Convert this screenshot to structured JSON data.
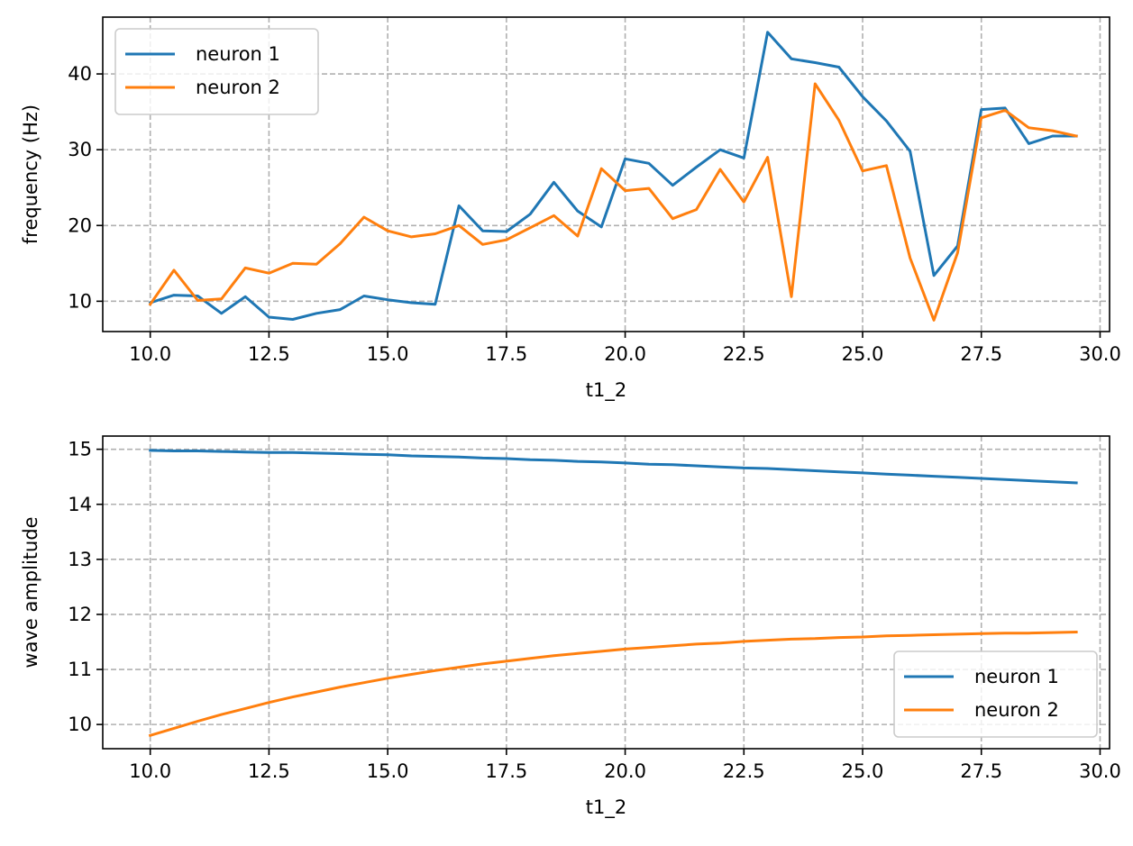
{
  "chart_data": [
    {
      "type": "line",
      "xlabel": "t1_2",
      "ylabel": "frequency (Hz)",
      "xlim": [
        9.0,
        30.2
      ],
      "ylim": [
        6.0,
        47.5
      ],
      "xticks": [
        "10.0",
        "12.5",
        "15.0",
        "17.5",
        "20.0",
        "22.5",
        "25.0",
        "27.5",
        "30.0"
      ],
      "xtick_values": [
        10.0,
        12.5,
        15.0,
        17.5,
        20.0,
        22.5,
        25.0,
        27.5,
        30.0
      ],
      "yticks": [
        "10",
        "20",
        "30",
        "40"
      ],
      "ytick_values": [
        10,
        20,
        30,
        40
      ],
      "grid": true,
      "legend_position": "top-left",
      "x": [
        10.0,
        10.5,
        11.0,
        11.5,
        12.0,
        12.5,
        13.0,
        13.5,
        14.0,
        14.5,
        15.0,
        15.5,
        16.0,
        16.5,
        17.0,
        17.5,
        18.0,
        18.5,
        19.0,
        19.5,
        20.0,
        20.5,
        21.0,
        21.5,
        22.0,
        22.5,
        23.0,
        23.5,
        24.0,
        24.5,
        25.0,
        25.5,
        26.0,
        26.5,
        27.0,
        27.5,
        28.0,
        28.5,
        29.0,
        29.5
      ],
      "series": [
        {
          "name": "neuron 1",
          "color": "#1f77b4",
          "values": [
            9.8,
            10.8,
            10.7,
            8.4,
            10.6,
            7.9,
            7.6,
            8.4,
            8.9,
            10.7,
            10.2,
            9.8,
            9.6,
            22.6,
            19.3,
            19.2,
            21.5,
            25.7,
            21.9,
            19.8,
            28.8,
            28.2,
            25.3,
            27.7,
            30.0,
            28.9,
            45.5,
            42.0,
            41.5,
            40.9,
            37.0,
            33.8,
            29.8,
            13.4,
            17.3,
            35.3,
            35.5,
            30.8,
            31.8,
            31.8
          ]
        },
        {
          "name": "neuron 2",
          "color": "#ff7f0e",
          "values": [
            9.6,
            14.1,
            10.1,
            10.3,
            14.4,
            13.7,
            15.0,
            14.9,
            17.6,
            21.1,
            19.3,
            18.5,
            18.9,
            20.0,
            17.5,
            18.1,
            19.7,
            21.3,
            18.6,
            27.5,
            24.6,
            24.9,
            20.9,
            22.1,
            27.4,
            23.1,
            29.0,
            10.6,
            38.7,
            33.9,
            27.2,
            27.9,
            15.7,
            7.5,
            16.4,
            34.2,
            35.2,
            32.9,
            32.5,
            31.8
          ]
        }
      ]
    },
    {
      "type": "line",
      "xlabel": "t1_2",
      "ylabel": "wave amplitude",
      "xlim": [
        9.0,
        30.2
      ],
      "ylim": [
        9.56,
        15.24
      ],
      "xticks": [
        "10.0",
        "12.5",
        "15.0",
        "17.5",
        "20.0",
        "22.5",
        "25.0",
        "27.5",
        "30.0"
      ],
      "xtick_values": [
        10.0,
        12.5,
        15.0,
        17.5,
        20.0,
        22.5,
        25.0,
        27.5,
        30.0
      ],
      "yticks": [
        "10",
        "11",
        "12",
        "13",
        "14",
        "15"
      ],
      "ytick_values": [
        10,
        11,
        12,
        13,
        14,
        15
      ],
      "grid": true,
      "legend_position": "bottom-right",
      "x": [
        10.0,
        10.5,
        11.0,
        11.5,
        12.0,
        12.5,
        13.0,
        13.5,
        14.0,
        14.5,
        15.0,
        15.5,
        16.0,
        16.5,
        17.0,
        17.5,
        18.0,
        18.5,
        19.0,
        19.5,
        20.0,
        20.5,
        21.0,
        21.5,
        22.0,
        22.5,
        23.0,
        23.5,
        24.0,
        24.5,
        25.0,
        25.5,
        26.0,
        26.5,
        27.0,
        27.5,
        28.0,
        28.5,
        29.0,
        29.5
      ],
      "series": [
        {
          "name": "neuron 1",
          "color": "#1f77b4",
          "values": [
            14.98,
            14.97,
            14.97,
            14.96,
            14.95,
            14.94,
            14.94,
            14.93,
            14.92,
            14.91,
            14.9,
            14.88,
            14.87,
            14.86,
            14.84,
            14.83,
            14.81,
            14.8,
            14.78,
            14.77,
            14.75,
            14.73,
            14.72,
            14.7,
            14.68,
            14.66,
            14.65,
            14.63,
            14.61,
            14.59,
            14.57,
            14.55,
            14.53,
            14.51,
            14.49,
            14.47,
            14.45,
            14.43,
            14.41,
            14.39
          ]
        },
        {
          "name": "neuron 2",
          "color": "#ff7f0e",
          "values": [
            9.8,
            9.93,
            10.06,
            10.18,
            10.29,
            10.4,
            10.5,
            10.59,
            10.68,
            10.76,
            10.84,
            10.91,
            10.98,
            11.04,
            11.1,
            11.15,
            11.2,
            11.25,
            11.29,
            11.33,
            11.37,
            11.4,
            11.43,
            11.46,
            11.48,
            11.51,
            11.53,
            11.55,
            11.56,
            11.58,
            11.59,
            11.61,
            11.62,
            11.63,
            11.64,
            11.65,
            11.66,
            11.66,
            11.67,
            11.68
          ]
        }
      ]
    }
  ]
}
